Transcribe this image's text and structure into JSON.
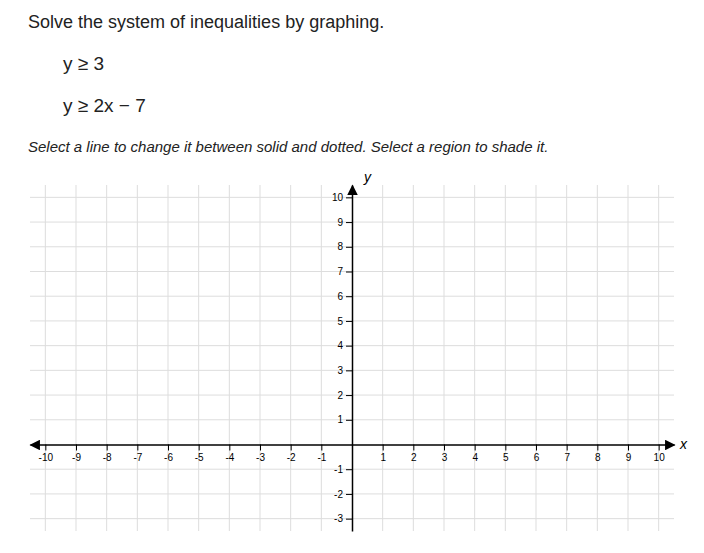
{
  "chart_data": {
    "type": "coordinate_plane",
    "title": "Solve the system of inequalities by graphing.",
    "annotations": [
      "y ≥ 3",
      "y ≥ 2x − 7",
      "Select a line to change it between solid and dotted. Select a region to shade it."
    ],
    "xlabel": "x",
    "ylabel": "y",
    "xlim": [
      -10.5,
      10.5
    ],
    "ylim": [
      -3.5,
      10.5
    ],
    "xticks": [
      -10,
      -9,
      -8,
      -7,
      -6,
      -5,
      -4,
      -3,
      -2,
      -1,
      1,
      2,
      3,
      4,
      5,
      6,
      7,
      8,
      9,
      10
    ],
    "yticks": [
      -3,
      -2,
      -1,
      1,
      2,
      3,
      4,
      5,
      6,
      7,
      8,
      9,
      10
    ],
    "grid": true
  }
}
